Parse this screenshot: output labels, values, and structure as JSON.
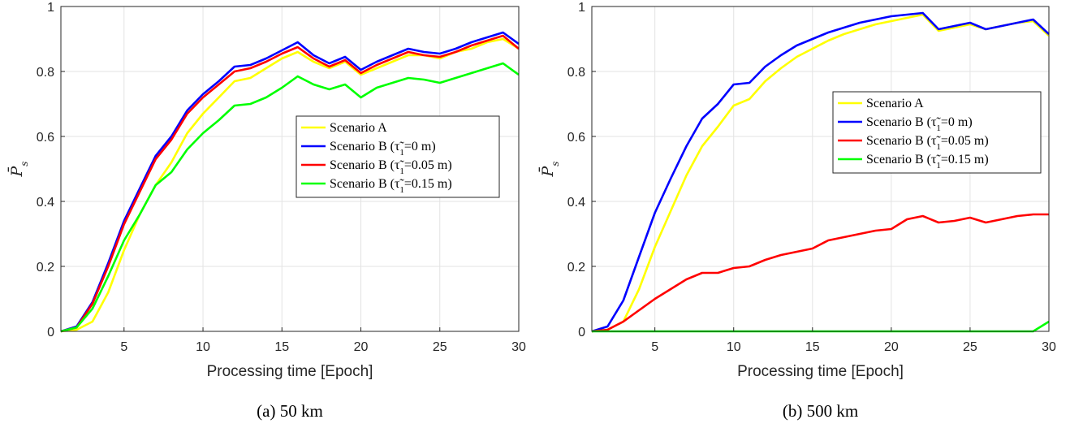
{
  "colors": {
    "Scenario A": "#ffff00",
    "Scenario B (τ̃1=0 m)": "#0000ff",
    "Scenario B (τ̃1=0.05 m)": "#ff0000",
    "Scenario B (τ̃1=0.15 m)": "#00ff00"
  },
  "chart_data": [
    {
      "type": "line",
      "caption": "(a) 50 km",
      "xlabel": "Processing time [Epoch]",
      "ylabel": "P̄s",
      "xlim": [
        1,
        30
      ],
      "ylim": [
        0,
        1
      ],
      "xticks": [
        5,
        10,
        15,
        20,
        25,
        30
      ],
      "yticks": [
        0,
        0.2,
        0.4,
        0.6,
        0.8,
        1
      ],
      "ytick_labels": [
        "0",
        "0.2",
        "0.4",
        "0.6",
        "0.8",
        "1"
      ],
      "grid": true,
      "legend_position": "center-right",
      "x": [
        1,
        2,
        3,
        4,
        5,
        6,
        7,
        8,
        9,
        10,
        11,
        12,
        13,
        14,
        15,
        16,
        17,
        18,
        19,
        20,
        21,
        22,
        23,
        24,
        25,
        26,
        27,
        28,
        29,
        30
      ],
      "series": [
        {
          "name": "Scenario A",
          "values": [
            0,
            0.005,
            0.03,
            0.12,
            0.25,
            0.36,
            0.45,
            0.52,
            0.61,
            0.67,
            0.72,
            0.77,
            0.78,
            0.81,
            0.84,
            0.86,
            0.83,
            0.81,
            0.83,
            0.79,
            0.81,
            0.83,
            0.85,
            0.85,
            0.84,
            0.86,
            0.87,
            0.89,
            0.9,
            0.87
          ]
        },
        {
          "name": "Scenario B (τ̃1=0 m)",
          "values": [
            0,
            0.015,
            0.09,
            0.21,
            0.34,
            0.44,
            0.54,
            0.6,
            0.68,
            0.73,
            0.77,
            0.815,
            0.82,
            0.84,
            0.865,
            0.89,
            0.85,
            0.825,
            0.845,
            0.805,
            0.83,
            0.85,
            0.87,
            0.86,
            0.855,
            0.87,
            0.89,
            0.905,
            0.92,
            0.885
          ]
        },
        {
          "name": "Scenario B (τ̃1=0.05 m)",
          "values": [
            0,
            0.012,
            0.085,
            0.2,
            0.33,
            0.43,
            0.53,
            0.59,
            0.67,
            0.72,
            0.76,
            0.8,
            0.81,
            0.83,
            0.855,
            0.875,
            0.84,
            0.815,
            0.835,
            0.795,
            0.82,
            0.84,
            0.86,
            0.85,
            0.845,
            0.86,
            0.88,
            0.895,
            0.91,
            0.87
          ]
        },
        {
          "name": "Scenario B (τ̃1=0.15 m)",
          "values": [
            0,
            0.012,
            0.07,
            0.17,
            0.28,
            0.36,
            0.45,
            0.49,
            0.56,
            0.61,
            0.65,
            0.695,
            0.7,
            0.72,
            0.75,
            0.785,
            0.76,
            0.745,
            0.76,
            0.72,
            0.75,
            0.765,
            0.78,
            0.775,
            0.765,
            0.78,
            0.795,
            0.81,
            0.825,
            0.79
          ]
        }
      ]
    },
    {
      "type": "line",
      "caption": "(b) 500 km",
      "xlabel": "Processing time [Epoch]",
      "ylabel": "P̄s",
      "xlim": [
        1,
        30
      ],
      "ylim": [
        0,
        1
      ],
      "xticks": [
        5,
        10,
        15,
        20,
        25,
        30
      ],
      "yticks": [
        0,
        0.2,
        0.4,
        0.6,
        0.8,
        1
      ],
      "ytick_labels": [
        "0",
        "0.2",
        "0.4",
        "0.6",
        "0.8",
        "1"
      ],
      "grid": true,
      "legend_position": "center-right",
      "x": [
        1,
        2,
        3,
        4,
        5,
        6,
        7,
        8,
        9,
        10,
        11,
        12,
        13,
        14,
        15,
        16,
        17,
        18,
        19,
        20,
        21,
        22,
        23,
        24,
        25,
        26,
        27,
        28,
        29,
        30
      ],
      "series": [
        {
          "name": "Scenario A",
          "values": [
            0,
            0.005,
            0.03,
            0.13,
            0.26,
            0.37,
            0.48,
            0.57,
            0.63,
            0.695,
            0.715,
            0.77,
            0.81,
            0.845,
            0.87,
            0.895,
            0.915,
            0.93,
            0.945,
            0.955,
            0.965,
            0.975,
            0.925,
            0.935,
            0.945,
            0.93,
            0.94,
            0.95,
            0.955,
            0.91
          ]
        },
        {
          "name": "Scenario B (τ̃1=0 m)",
          "values": [
            0,
            0.015,
            0.095,
            0.23,
            0.365,
            0.47,
            0.57,
            0.655,
            0.7,
            0.76,
            0.765,
            0.815,
            0.85,
            0.88,
            0.9,
            0.92,
            0.935,
            0.95,
            0.96,
            0.97,
            0.975,
            0.98,
            0.93,
            0.94,
            0.95,
            0.93,
            0.94,
            0.95,
            0.96,
            0.915
          ]
        },
        {
          "name": "Scenario B (τ̃1=0.05 m)",
          "values": [
            0,
            0.005,
            0.03,
            0.065,
            0.1,
            0.13,
            0.16,
            0.18,
            0.18,
            0.195,
            0.2,
            0.22,
            0.235,
            0.245,
            0.255,
            0.28,
            0.29,
            0.3,
            0.31,
            0.315,
            0.345,
            0.355,
            0.335,
            0.34,
            0.35,
            0.335,
            0.345,
            0.355,
            0.36,
            0.36
          ]
        },
        {
          "name": "Scenario B (τ̃1=0.15 m)",
          "values": [
            0,
            0,
            0,
            0,
            0,
            0,
            0,
            0,
            0,
            0,
            0,
            0,
            0,
            0,
            0,
            0,
            0,
            0,
            0,
            0,
            0,
            0,
            0,
            0,
            0,
            0,
            0,
            0,
            0,
            0.03
          ]
        }
      ]
    }
  ]
}
